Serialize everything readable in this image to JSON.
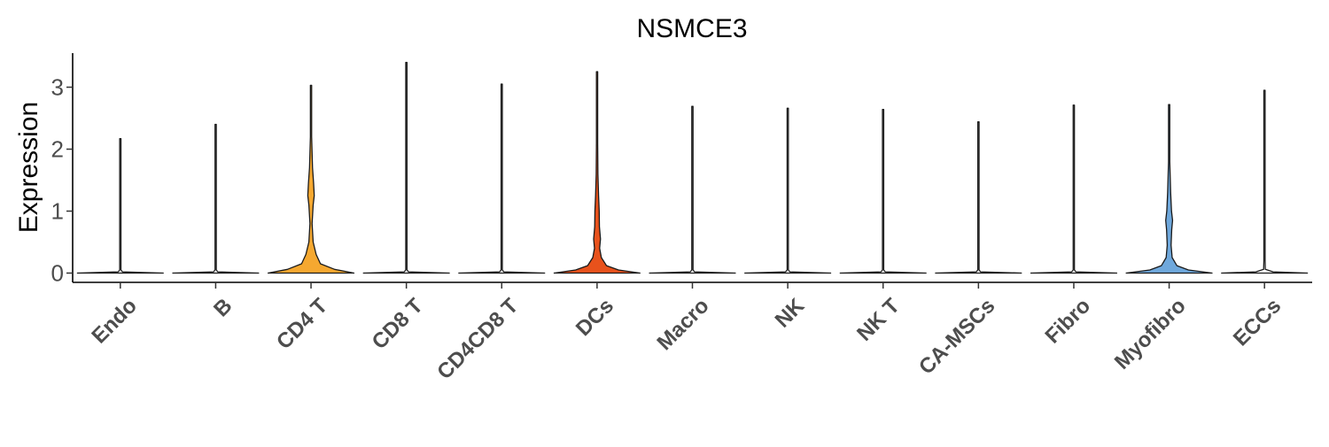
{
  "chart_data": {
    "type": "violin",
    "title": "NSMCE3",
    "xlabel": "",
    "ylabel": "Expression",
    "ylim": [
      -0.15,
      3.55
    ],
    "yticks": [
      0,
      1,
      2,
      3
    ],
    "grid": false,
    "legend": "none",
    "categories": [
      "Endo",
      "B",
      "CD4 T",
      "CD8 T",
      "CD4CD8 T",
      "DCs",
      "Macro",
      "NK",
      "NK T",
      "CA-MSCs",
      "Fibro",
      "Myofibro",
      "ECCs"
    ],
    "max_values": [
      2.17,
      2.4,
      3.03,
      3.4,
      3.05,
      3.25,
      2.69,
      2.66,
      2.64,
      2.44,
      2.71,
      2.72,
      2.95
    ],
    "colors": [
      "#ffffff",
      "#ffffff",
      "#f5a830",
      "#ffffff",
      "#ffffff",
      "#e8521c",
      "#ffffff",
      "#ffffff",
      "#ffffff",
      "#ffffff",
      "#ffffff",
      "#6fa8dc",
      "#ffffff"
    ],
    "density_profiles": [
      [
        [
          0,
          1
        ],
        [
          0.02,
          0.05
        ],
        [
          0.05,
          0.005
        ],
        [
          2.17,
          0.003
        ]
      ],
      [
        [
          0,
          1
        ],
        [
          0.02,
          0.05
        ],
        [
          0.05,
          0.005
        ],
        [
          2.4,
          0.003
        ]
      ],
      [
        [
          0,
          1
        ],
        [
          0.06,
          0.55
        ],
        [
          0.15,
          0.22
        ],
        [
          0.3,
          0.12
        ],
        [
          0.5,
          0.05
        ],
        [
          0.8,
          0.025
        ],
        [
          1.1,
          0.05
        ],
        [
          1.25,
          0.075
        ],
        [
          1.45,
          0.06
        ],
        [
          1.7,
          0.035
        ],
        [
          2.2,
          0.012
        ],
        [
          3.03,
          0.004
        ]
      ],
      [
        [
          0,
          1
        ],
        [
          0.02,
          0.05
        ],
        [
          0.05,
          0.005
        ],
        [
          3.4,
          0.003
        ]
      ],
      [
        [
          0,
          1
        ],
        [
          0.02,
          0.05
        ],
        [
          0.05,
          0.005
        ],
        [
          3.05,
          0.003
        ]
      ],
      [
        [
          0,
          1
        ],
        [
          0.05,
          0.5
        ],
        [
          0.12,
          0.22
        ],
        [
          0.25,
          0.1
        ],
        [
          0.4,
          0.06
        ],
        [
          0.55,
          0.08
        ],
        [
          0.75,
          0.055
        ],
        [
          1.0,
          0.05
        ],
        [
          1.25,
          0.035
        ],
        [
          1.6,
          0.02
        ],
        [
          2.1,
          0.008
        ],
        [
          3.25,
          0.004
        ]
      ],
      [
        [
          0,
          1
        ],
        [
          0.02,
          0.05
        ],
        [
          0.05,
          0.005
        ],
        [
          2.69,
          0.003
        ]
      ],
      [
        [
          0,
          1
        ],
        [
          0.02,
          0.05
        ],
        [
          0.05,
          0.005
        ],
        [
          2.66,
          0.003
        ]
      ],
      [
        [
          0,
          1
        ],
        [
          0.02,
          0.05
        ],
        [
          0.05,
          0.005
        ],
        [
          2.64,
          0.003
        ]
      ],
      [
        [
          0,
          1
        ],
        [
          0.02,
          0.05
        ],
        [
          0.05,
          0.005
        ],
        [
          2.44,
          0.003
        ]
      ],
      [
        [
          0,
          1
        ],
        [
          0.02,
          0.05
        ],
        [
          0.05,
          0.005
        ],
        [
          2.71,
          0.003
        ]
      ],
      [
        [
          0,
          1
        ],
        [
          0.05,
          0.45
        ],
        [
          0.12,
          0.18
        ],
        [
          0.25,
          0.07
        ],
        [
          0.45,
          0.045
        ],
        [
          0.7,
          0.06
        ],
        [
          0.85,
          0.08
        ],
        [
          1.0,
          0.055
        ],
        [
          1.3,
          0.035
        ],
        [
          1.8,
          0.012
        ],
        [
          2.72,
          0.004
        ]
      ],
      [
        [
          0,
          1
        ],
        [
          0.02,
          0.2
        ],
        [
          0.06,
          0.02
        ],
        [
          0.2,
          0.008
        ],
        [
          2.95,
          0.003
        ]
      ]
    ]
  }
}
